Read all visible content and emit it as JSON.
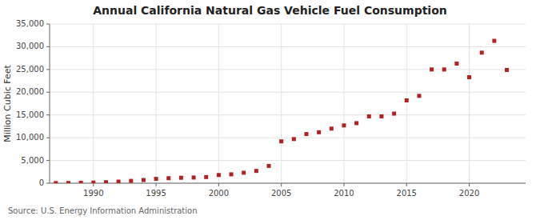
{
  "chart_data": {
    "type": "scatter",
    "title": "Annual California Natural Gas Vehicle Fuel Consumption",
    "ylabel": "Million Cubic Feet",
    "annotations": [
      "Source: U.S. Energy Information Administration"
    ],
    "x": [
      1987,
      1988,
      1989,
      1990,
      1991,
      1992,
      1993,
      1994,
      1995,
      1996,
      1997,
      1998,
      1999,
      2000,
      2001,
      2002,
      2003,
      2004,
      2005,
      2006,
      2007,
      2008,
      2009,
      2010,
      2011,
      2012,
      2013,
      2014,
      2015,
      2016,
      2017,
      2018,
      2019,
      2020,
      2021,
      2022,
      2023
    ],
    "values": [
      30,
      50,
      100,
      140,
      220,
      350,
      500,
      700,
      950,
      1100,
      1200,
      1250,
      1350,
      1800,
      1950,
      2300,
      2700,
      3800,
      9200,
      9700,
      10800,
      11200,
      12000,
      12700,
      13200,
      14700,
      14700,
      15300,
      18200,
      19200,
      25000,
      25000,
      26300,
      23300,
      28700,
      31300,
      24900
    ],
    "color": "#b22222",
    "marker": "square",
    "xlim": [
      1986.5,
      2024.5
    ],
    "ylim": [
      0,
      35000
    ],
    "xticks": [
      1990,
      1995,
      2000,
      2005,
      2010,
      2015,
      2020
    ],
    "yticks": [
      0,
      {
        "value": 5000,
        "label": "5,000"
      },
      {
        "value": 10000,
        "label": "10,000"
      },
      {
        "value": 15000,
        "label": "15,000"
      },
      {
        "value": 20000,
        "label": "20,000"
      },
      {
        "value": 25000,
        "label": "25,000"
      },
      {
        "value": 30000,
        "label": "30,000"
      },
      {
        "value": 35000,
        "label": "35,000"
      }
    ],
    "grid": true
  }
}
